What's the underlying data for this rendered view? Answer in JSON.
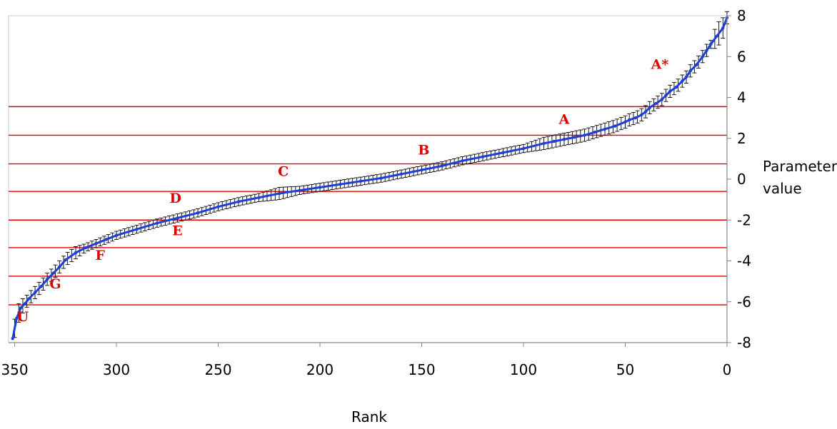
{
  "chart_data": {
    "type": "line",
    "title": "",
    "xlabel": "Rank",
    "ylabel_lines": [
      "Parameter",
      "value"
    ],
    "xlim": [
      353,
      0
    ],
    "ylim": [
      -8,
      8
    ],
    "x_ticks": [
      "350",
      "300",
      "250",
      "200",
      "150",
      "100",
      "50",
      "0"
    ],
    "x_tick_values": [
      350,
      300,
      250,
      200,
      150,
      100,
      50,
      0
    ],
    "y_ticks": [
      "8",
      "6",
      "4",
      "2",
      "0",
      "-2",
      "-4",
      "-6",
      "-8"
    ],
    "y_tick_values": [
      8,
      6,
      4,
      2,
      0,
      -2,
      -4,
      -6,
      -8
    ],
    "x_reversed": true,
    "y_axis_side": "right",
    "grid": false,
    "colors": {
      "series": "#1e3fd6",
      "error_bars": "#000000",
      "thresholds": "#e00000",
      "labels": "#e00000"
    },
    "series": [
      {
        "x": [
          0,
          2,
          5,
          8,
          10,
          12,
          15,
          18,
          20,
          22,
          25,
          28,
          30,
          32,
          35,
          38,
          40,
          42,
          45,
          48,
          50,
          55,
          60,
          65,
          70,
          75,
          80,
          85,
          90,
          100,
          110,
          120,
          130,
          140,
          150,
          160,
          170,
          180,
          190,
          200,
          210,
          220,
          230,
          240,
          250,
          260,
          270,
          280,
          290,
          300,
          305,
          310,
          315,
          320,
          325,
          328,
          331,
          334,
          337,
          340,
          343,
          345,
          347,
          349,
          351
        ],
        "y": [
          7.9,
          7.4,
          7.0,
          6.6,
          6.3,
          6.0,
          5.6,
          5.3,
          5.0,
          4.8,
          4.5,
          4.3,
          4.1,
          3.9,
          3.7,
          3.5,
          3.3,
          3.15,
          3.0,
          2.9,
          2.8,
          2.6,
          2.45,
          2.3,
          2.15,
          2.05,
          1.95,
          1.85,
          1.75,
          1.5,
          1.3,
          1.1,
          0.9,
          0.65,
          0.45,
          0.25,
          0.05,
          -0.1,
          -0.25,
          -0.4,
          -0.55,
          -0.7,
          -0.9,
          -1.1,
          -1.35,
          -1.65,
          -1.9,
          -2.15,
          -2.45,
          -2.75,
          -2.95,
          -3.15,
          -3.35,
          -3.6,
          -3.95,
          -4.3,
          -4.6,
          -4.9,
          -5.25,
          -5.55,
          -5.85,
          -6.1,
          -6.3,
          -6.8,
          -7.8
        ],
        "err": [
          0.3,
          0.5,
          0.6,
          0.2,
          0.3,
          0.3,
          0.3,
          0.3,
          0.3,
          0.3,
          0.3,
          0.3,
          0.3,
          0.3,
          0.3,
          0.3,
          0.3,
          0.3,
          0.3,
          0.3,
          0.3,
          0.3,
          0.3,
          0.3,
          0.3,
          0.3,
          0.3,
          0.3,
          0.3,
          0.2,
          0.2,
          0.2,
          0.2,
          0.2,
          0.2,
          0.2,
          0.2,
          0.2,
          0.2,
          0.2,
          0.2,
          0.3,
          0.2,
          0.2,
          0.2,
          0.2,
          0.2,
          0.2,
          0.2,
          0.2,
          0.2,
          0.2,
          0.2,
          0.3,
          0.3,
          0.3,
          0.3,
          0.3,
          0.3,
          0.3,
          0.3,
          0.3,
          0.4,
          0.5,
          0.4
        ]
      }
    ],
    "thresholds": [
      3.55,
      2.15,
      0.75,
      -0.6,
      -2.0,
      -3.35,
      -4.75,
      -6.15
    ],
    "category_labels": [
      {
        "text": "A*",
        "x": 33,
        "y": 5.4
      },
      {
        "text": "A",
        "x": 80,
        "y": 2.7
      },
      {
        "text": "B",
        "x": 149,
        "y": 1.2
      },
      {
        "text": "C",
        "x": 218,
        "y": 0.15
      },
      {
        "text": "D",
        "x": 271,
        "y": -1.15
      },
      {
        "text": "E",
        "x": 270,
        "y": -2.75
      },
      {
        "text": "F",
        "x": 308,
        "y": -3.95
      },
      {
        "text": "G",
        "x": 330,
        "y": -5.35
      },
      {
        "text": "U",
        "x": 346,
        "y": -6.95
      }
    ]
  }
}
